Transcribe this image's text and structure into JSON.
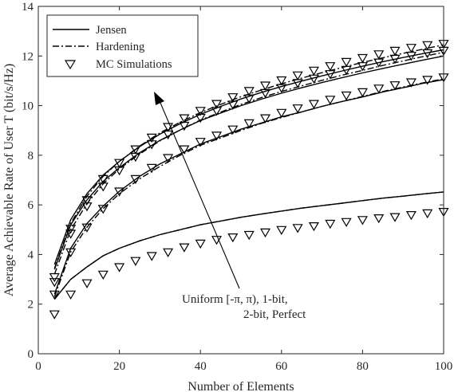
{
  "chart_data": {
    "type": "line",
    "xlabel": "Number of Elements",
    "ylabel": "Average Achievable Rate of User T (bit/s/Hz)",
    "xlim": [
      0,
      100
    ],
    "ylim": [
      0,
      14
    ],
    "xticks": [
      0,
      20,
      40,
      60,
      80,
      100
    ],
    "yticks": [
      0,
      2,
      4,
      6,
      8,
      10,
      12,
      14
    ],
    "grid": false,
    "legend_position": "top-left",
    "legend": [
      {
        "label": "Jensen",
        "style": "solid"
      },
      {
        "label": "Hardening",
        "style": "dashdot"
      },
      {
        "label": "MC Simulations",
        "style": "triangle-down-marker"
      }
    ],
    "annotation": {
      "lines": [
        "Uniform [-π, π), 1-bit,",
        "2-bit, Perfect"
      ],
      "arrow": "points toward increasing rate curves"
    },
    "series": [
      {
        "name": "Uniform [-π, π)",
        "jensen": {
          "x": [
            4,
            8,
            12,
            16,
            20,
            25,
            30,
            35,
            40,
            45,
            50,
            55,
            60,
            65,
            70,
            75,
            80,
            85,
            90,
            95,
            100
          ],
          "y": [
            2.2,
            3.0,
            3.5,
            3.95,
            4.25,
            4.55,
            4.8,
            5.0,
            5.2,
            5.35,
            5.5,
            5.63,
            5.75,
            5.87,
            5.97,
            6.07,
            6.17,
            6.27,
            6.35,
            6.44,
            6.52
          ]
        },
        "hardening": {
          "x": [
            4,
            8,
            12,
            16,
            20,
            25,
            30,
            35,
            40,
            45,
            50,
            55,
            60,
            65,
            70,
            75,
            80,
            85,
            90,
            95,
            100
          ],
          "y": [
            2.2,
            3.0,
            3.5,
            3.95,
            4.25,
            4.55,
            4.8,
            5.0,
            5.2,
            5.35,
            5.5,
            5.63,
            5.75,
            5.87,
            5.97,
            6.07,
            6.17,
            6.27,
            6.35,
            6.44,
            6.52
          ]
        },
        "mc": {
          "x": [
            4,
            8,
            12,
            16,
            20,
            24,
            28,
            32,
            36,
            40,
            44,
            48,
            52,
            56,
            60,
            64,
            68,
            72,
            76,
            80,
            84,
            88,
            92,
            96,
            100
          ],
          "y": [
            1.6,
            2.4,
            2.85,
            3.2,
            3.5,
            3.75,
            3.95,
            4.1,
            4.3,
            4.45,
            4.6,
            4.7,
            4.8,
            4.9,
            5.0,
            5.08,
            5.15,
            5.25,
            5.32,
            5.4,
            5.47,
            5.52,
            5.6,
            5.67,
            5.73
          ]
        }
      },
      {
        "name": "1-bit",
        "jensen": {
          "x": [
            4,
            8,
            12,
            16,
            20,
            25,
            30,
            35,
            40,
            45,
            50,
            55,
            60,
            65,
            70,
            75,
            80,
            85,
            90,
            95,
            100
          ],
          "y": [
            2.4,
            4.25,
            5.25,
            5.95,
            6.55,
            7.15,
            7.65,
            8.05,
            8.45,
            8.75,
            9.05,
            9.3,
            9.55,
            9.75,
            9.97,
            10.17,
            10.35,
            10.55,
            10.72,
            10.9,
            11.05
          ]
        },
        "hardening": {
          "x": [
            4,
            8,
            12,
            16,
            20,
            25,
            30,
            35,
            40,
            45,
            50,
            55,
            60,
            65,
            70,
            75,
            80,
            85,
            90,
            95,
            100
          ],
          "y": [
            2.3,
            4.1,
            5.1,
            5.85,
            6.45,
            7.05,
            7.55,
            8.0,
            8.4,
            8.7,
            9.0,
            9.28,
            9.52,
            9.75,
            9.97,
            10.17,
            10.37,
            10.57,
            10.75,
            10.92,
            11.08
          ]
        },
        "mc": {
          "x": [
            4,
            8,
            12,
            16,
            20,
            24,
            28,
            32,
            36,
            40,
            44,
            48,
            52,
            56,
            60,
            64,
            68,
            72,
            76,
            80,
            84,
            88,
            92,
            96,
            100
          ],
          "y": [
            2.4,
            4.1,
            5.1,
            5.85,
            6.55,
            7.05,
            7.5,
            7.9,
            8.25,
            8.55,
            8.8,
            9.05,
            9.3,
            9.5,
            9.72,
            9.9,
            10.08,
            10.25,
            10.42,
            10.55,
            10.7,
            10.83,
            10.95,
            11.05,
            11.15
          ]
        }
      },
      {
        "name": "2-bit",
        "jensen": {
          "x": [
            4,
            8,
            12,
            16,
            20,
            25,
            30,
            35,
            40,
            45,
            50,
            55,
            60,
            65,
            70,
            75,
            80,
            85,
            90,
            95,
            100
          ],
          "y": [
            3.4,
            5.2,
            6.2,
            6.95,
            7.5,
            8.1,
            8.6,
            9.02,
            9.4,
            9.7,
            10.0,
            10.26,
            10.5,
            10.72,
            10.93,
            11.13,
            11.32,
            11.5,
            11.67,
            11.84,
            12.0
          ]
        },
        "hardening": {
          "x": [
            4,
            8,
            12,
            16,
            20,
            25,
            30,
            35,
            40,
            45,
            50,
            55,
            60,
            65,
            70,
            75,
            80,
            85,
            90,
            95,
            100
          ],
          "y": [
            3.2,
            5.0,
            6.05,
            6.85,
            7.45,
            8.05,
            8.58,
            9.02,
            9.42,
            9.74,
            10.05,
            10.32,
            10.57,
            10.8,
            11.02,
            11.23,
            11.42,
            11.62,
            11.8,
            11.98,
            12.15
          ]
        },
        "mc": {
          "x": [
            4,
            8,
            12,
            16,
            20,
            24,
            28,
            32,
            36,
            40,
            44,
            48,
            52,
            56,
            60,
            64,
            68,
            72,
            76,
            80,
            84,
            88,
            92,
            96,
            100
          ],
          "y": [
            2.9,
            4.85,
            5.95,
            6.75,
            7.4,
            7.95,
            8.45,
            8.85,
            9.2,
            9.52,
            9.8,
            10.05,
            10.3,
            10.52,
            10.72,
            10.92,
            11.1,
            11.28,
            11.45,
            11.6,
            11.75,
            11.9,
            12.02,
            12.12,
            12.22
          ]
        }
      },
      {
        "name": "Perfect",
        "jensen": {
          "x": [
            4,
            8,
            12,
            16,
            20,
            25,
            30,
            35,
            40,
            45,
            50,
            55,
            60,
            65,
            70,
            75,
            80,
            85,
            90,
            95,
            100
          ],
          "y": [
            3.6,
            5.4,
            6.45,
            7.2,
            7.75,
            8.35,
            8.85,
            9.27,
            9.65,
            9.97,
            10.27,
            10.53,
            10.77,
            10.99,
            11.2,
            11.4,
            11.59,
            11.77,
            11.94,
            12.1,
            12.25
          ]
        },
        "hardening": {
          "x": [
            4,
            8,
            12,
            16,
            20,
            25,
            30,
            35,
            40,
            45,
            50,
            55,
            60,
            65,
            70,
            75,
            80,
            85,
            90,
            95,
            100
          ],
          "y": [
            3.45,
            5.25,
            6.35,
            7.15,
            7.75,
            8.37,
            8.9,
            9.33,
            9.72,
            10.05,
            10.36,
            10.63,
            10.88,
            11.11,
            11.33,
            11.54,
            11.74,
            11.93,
            12.11,
            12.28,
            12.45
          ]
        },
        "mc": {
          "x": [
            4,
            8,
            12,
            16,
            20,
            24,
            28,
            32,
            36,
            40,
            44,
            48,
            52,
            56,
            60,
            64,
            68,
            72,
            76,
            80,
            84,
            88,
            92,
            96,
            100
          ],
          "y": [
            3.1,
            5.05,
            6.2,
            7.05,
            7.7,
            8.25,
            8.72,
            9.15,
            9.5,
            9.8,
            10.08,
            10.35,
            10.6,
            10.82,
            11.03,
            11.23,
            11.42,
            11.6,
            11.77,
            11.93,
            12.08,
            12.22,
            12.34,
            12.45,
            12.5
          ]
        }
      }
    ]
  },
  "colors": {
    "line": "#000000",
    "axis": "#262626",
    "background": "#ffffff"
  }
}
